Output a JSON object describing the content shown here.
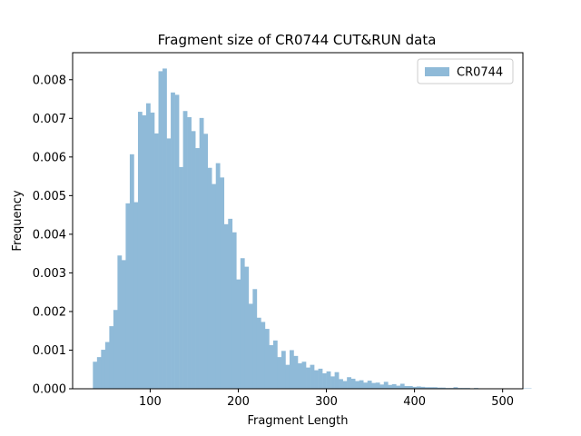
{
  "chart_data": {
    "type": "bar",
    "title": "Fragment size of CR0744 CUT&RUN data",
    "xlabel": "Fragment Length",
    "ylabel": "Frequency",
    "xlim": [
      12,
      523
    ],
    "ylim": [
      0,
      0.0087
    ],
    "xticks": [
      100,
      200,
      300,
      400,
      500
    ],
    "yticks": [
      0.0,
      0.001,
      0.002,
      0.003,
      0.004,
      0.005,
      0.006,
      0.007,
      0.008
    ],
    "ytick_labels": [
      "0.000",
      "0.001",
      "0.002",
      "0.003",
      "0.004",
      "0.005",
      "0.006",
      "0.007",
      "0.008"
    ],
    "xtick_labels": [
      "100",
      "200",
      "300",
      "400",
      "500"
    ],
    "bin_start": 35,
    "bin_width": 4.65,
    "color": "#8fbad8",
    "legend": {
      "position": "top-right",
      "entries": [
        "CR0744"
      ]
    },
    "series": [
      {
        "name": "CR0744",
        "values": [
          0.0007,
          0.00082,
          0.00101,
          0.00121,
          0.00162,
          0.00204,
          0.00345,
          0.00333,
          0.0048,
          0.00607,
          0.00483,
          0.00717,
          0.00708,
          0.00739,
          0.00715,
          0.00661,
          0.00822,
          0.00829,
          0.00648,
          0.00767,
          0.00761,
          0.00574,
          0.00719,
          0.00703,
          0.00667,
          0.00623,
          0.00701,
          0.0066,
          0.00572,
          0.0053,
          0.00584,
          0.00547,
          0.00426,
          0.0044,
          0.00405,
          0.00283,
          0.00338,
          0.00316,
          0.0022,
          0.00258,
          0.00184,
          0.00173,
          0.00155,
          0.00113,
          0.00125,
          0.00082,
          0.00098,
          0.00062,
          0.001,
          0.00085,
          0.00066,
          0.0007,
          0.00055,
          0.00062,
          0.00048,
          0.00052,
          0.0004,
          0.00045,
          0.00032,
          0.00043,
          0.00025,
          0.0002,
          0.0003,
          0.00026,
          0.0002,
          0.00022,
          0.00016,
          0.00021,
          0.00015,
          0.00016,
          0.00011,
          0.00018,
          0.0001,
          0.00012,
          8e-05,
          0.00013,
          7e-05,
          7e-05,
          5e-05,
          6e-05,
          5e-05,
          4e-05,
          4e-05,
          4e-05,
          3e-05,
          3e-05,
          2e-05,
          2e-05,
          4e-05,
          2e-05,
          2e-05,
          2e-05,
          1e-05,
          2e-05,
          1e-05,
          1e-05,
          1e-05,
          1e-05,
          1e-05,
          1e-05,
          1e-05,
          1e-05,
          1e-05,
          1e-05,
          1e-05,
          1e-05,
          1e-05
        ]
      }
    ]
  }
}
